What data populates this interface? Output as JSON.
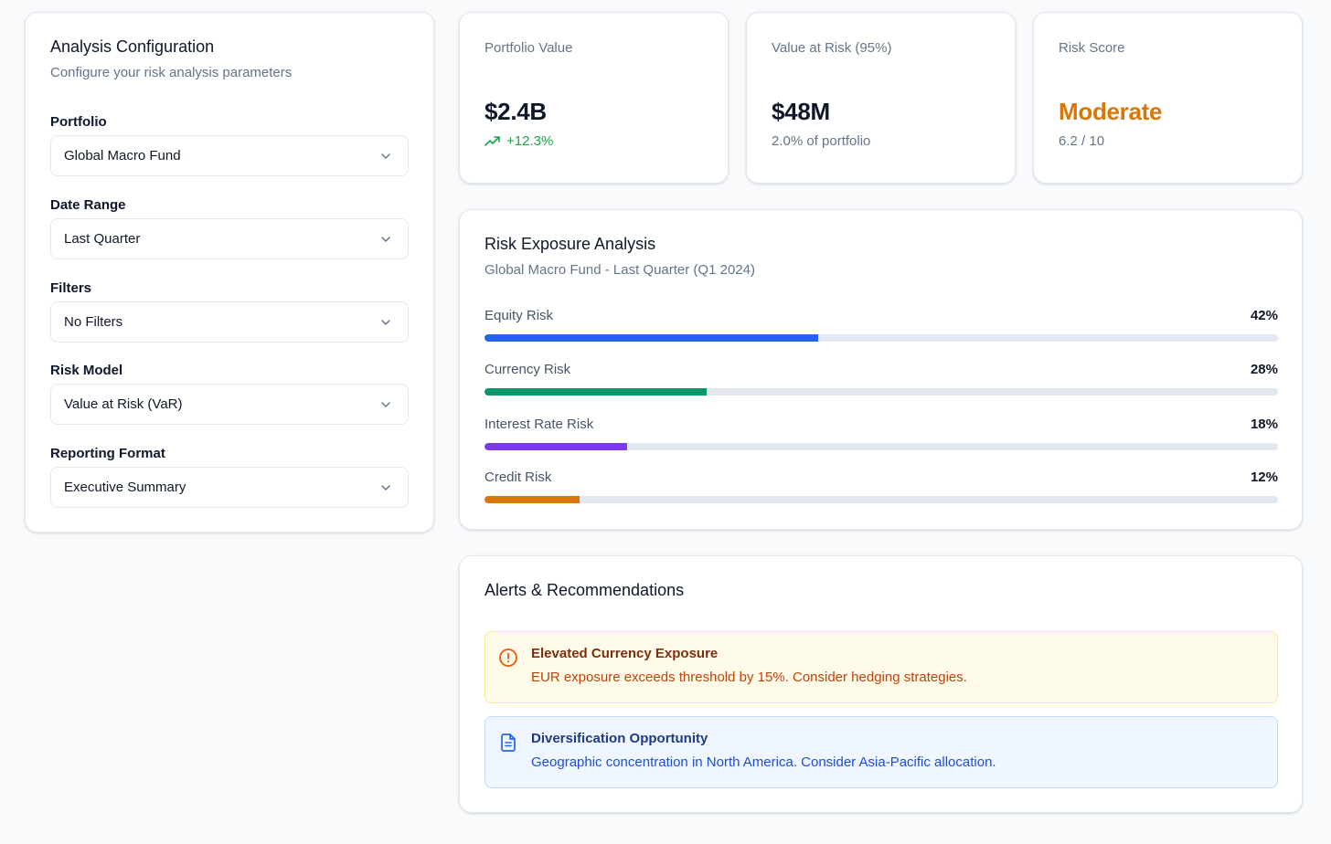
{
  "config": {
    "title": "Analysis Configuration",
    "subtitle": "Configure your risk analysis parameters",
    "fields": [
      {
        "label": "Portfolio",
        "value": "Global Macro Fund"
      },
      {
        "label": "Date Range",
        "value": "Last Quarter"
      },
      {
        "label": "Filters",
        "value": "No Filters"
      },
      {
        "label": "Risk Model",
        "value": "Value at Risk (VaR)"
      },
      {
        "label": "Reporting Format",
        "value": "Executive Summary"
      }
    ],
    "dropdown_icon": "chevron-down-icon"
  },
  "stats": [
    {
      "label": "Portfolio Value",
      "value": "$2.4B",
      "foot": "+12.3%",
      "foot_icon": "trending-up-icon",
      "value_color": "#0f172a"
    },
    {
      "label": "Value at Risk (95%)",
      "value": "$48M",
      "foot": "2.0% of portfolio",
      "value_color": "#0f172a"
    },
    {
      "label": "Risk Score",
      "value": "Moderate",
      "foot": "6.2 / 10",
      "value_color": "#d97706"
    }
  ],
  "exposure": {
    "title": "Risk Exposure Analysis",
    "subtitle": "Global Macro Fund - Last Quarter (Q1 2024)",
    "rows": [
      {
        "name": "Equity Risk",
        "pct_label": "42%",
        "fraction": 0.42,
        "color": "#2563eb"
      },
      {
        "name": "Currency Risk",
        "pct_label": "28%",
        "fraction": 0.28,
        "color": "#059669"
      },
      {
        "name": "Interest Rate Risk",
        "pct_label": "18%",
        "fraction": 0.18,
        "color": "#7c3aed"
      },
      {
        "name": "Credit Risk",
        "pct_label": "12%",
        "fraction": 0.12,
        "color": "#d97706"
      }
    ]
  },
  "alerts": {
    "title": "Alerts & Recommendations",
    "items": [
      {
        "title": "Elevated Currency Exposure",
        "text": "EUR exposure exceeds threshold by 15%. Consider hedging strategies.",
        "icon": "alert-circle-icon",
        "color": "#ea580c"
      },
      {
        "title": "Diversification Opportunity",
        "text": "Geographic concentration in North America. Consider Asia-Pacific allocation.",
        "icon": "document-icon",
        "color": "#2563eb"
      }
    ]
  }
}
